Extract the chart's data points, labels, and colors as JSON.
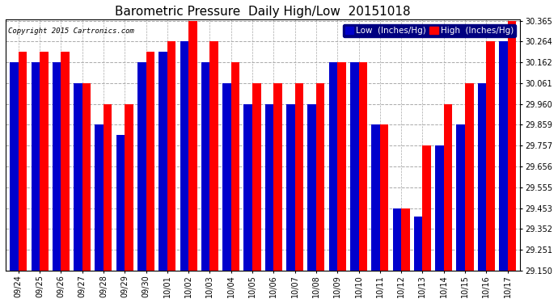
{
  "title": "Barometric Pressure  Daily High/Low  20151018",
  "copyright": "Copyright 2015 Cartronics.com",
  "legend_low": "Low  (Inches/Hg)",
  "legend_high": "High  (Inches/Hg)",
  "dates": [
    "09/24",
    "09/25",
    "09/26",
    "09/27",
    "09/28",
    "09/29",
    "09/30",
    "10/01",
    "10/02",
    "10/03",
    "10/04",
    "10/05",
    "10/06",
    "10/07",
    "10/08",
    "10/09",
    "10/10",
    "10/11",
    "10/12",
    "10/13",
    "10/14",
    "10/15",
    "10/16",
    "10/17"
  ],
  "low_values": [
    30.162,
    30.162,
    30.162,
    30.061,
    29.859,
    29.808,
    30.162,
    30.213,
    30.264,
    30.162,
    30.061,
    29.96,
    29.96,
    29.96,
    29.96,
    30.162,
    30.162,
    29.859,
    29.453,
    29.413,
    29.757,
    29.859,
    30.061,
    30.264
  ],
  "high_values": [
    30.213,
    30.213,
    30.213,
    30.061,
    29.96,
    29.96,
    30.213,
    30.264,
    30.365,
    30.264,
    30.162,
    30.061,
    30.061,
    30.061,
    30.061,
    30.162,
    30.162,
    29.859,
    29.453,
    29.757,
    29.96,
    30.061,
    30.264,
    30.365
  ],
  "bar_width": 0.4,
  "low_color": "#0000cc",
  "high_color": "#ff0000",
  "background_color": "#ffffff",
  "grid_color": "#aaaaaa",
  "ylim_min": 29.15,
  "ylim_max": 30.365,
  "yticks": [
    29.15,
    29.251,
    29.352,
    29.453,
    29.555,
    29.656,
    29.757,
    29.859,
    29.96,
    30.061,
    30.162,
    30.264,
    30.365
  ],
  "title_fontsize": 11,
  "tick_fontsize": 7,
  "legend_fontsize": 7.5
}
